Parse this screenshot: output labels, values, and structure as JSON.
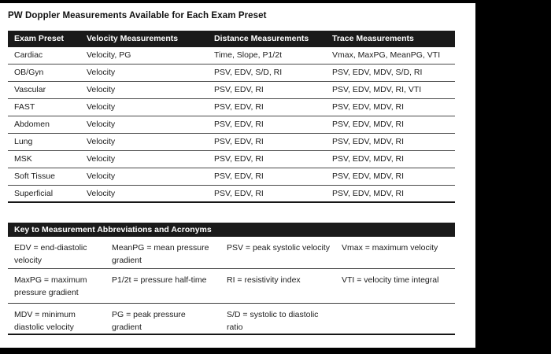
{
  "title": "PW Doppler Measurements Available for Each Exam Preset",
  "colors": {
    "header_band": "#1a1a1a",
    "page_background": "#ffffff",
    "frame_background": "#000000",
    "body_text": "#1c1c1c",
    "divider": "#4a4a4a"
  },
  "main_table": {
    "headers": [
      "Exam Preset",
      "Velocity Measurements",
      "Distance Measurements",
      "Trace Measurements"
    ],
    "rows": [
      [
        "Cardiac",
        "Velocity, PG",
        "Time, Slope, P1/2t",
        "Vmax, MaxPG, MeanPG, VTI"
      ],
      [
        "OB/Gyn",
        "Velocity",
        "PSV, EDV, S/D, RI",
        "PSV, EDV, MDV, S/D, RI"
      ],
      [
        "Vascular",
        "Velocity",
        "PSV, EDV, RI",
        "PSV, EDV, MDV, RI, VTI"
      ],
      [
        "FAST",
        "Velocity",
        "PSV, EDV, RI",
        "PSV, EDV, MDV, RI"
      ],
      [
        "Abdomen",
        "Velocity",
        "PSV, EDV, RI",
        "PSV, EDV, MDV, RI"
      ],
      [
        "Lung",
        "Velocity",
        "PSV, EDV, RI",
        "PSV, EDV, MDV, RI"
      ],
      [
        "MSK",
        "Velocity",
        "PSV, EDV, RI",
        "PSV, EDV, MDV, RI"
      ],
      [
        "Soft Tissue",
        "Velocity",
        "PSV, EDV, RI",
        "PSV, EDV, MDV, RI"
      ],
      [
        "Superficial",
        "Velocity",
        "PSV, EDV, RI",
        "PSV, EDV, MDV, RI"
      ]
    ]
  },
  "key_table": {
    "header": "Key to Measurement Abbreviations and Acronyms",
    "rows": [
      [
        [
          "EDV = end-diastolic",
          "velocity"
        ],
        [
          "MeanPG = mean pressure",
          "gradient"
        ],
        [
          "PSV = peak systolic velocity"
        ],
        [
          "Vmax = maximum velocity"
        ]
      ],
      [
        [
          "MaxPG = maximum",
          "pressure gradient"
        ],
        [
          "P1/2t = pressure half-time"
        ],
        [
          "RI = resistivity index"
        ],
        [
          "VTI = velocity time integral"
        ]
      ],
      [
        [
          "MDV = minimum",
          "diastolic velocity"
        ],
        [
          "PG = peak pressure",
          "gradient"
        ],
        [
          "S/D = systolic to diastolic",
          "ratio"
        ],
        []
      ]
    ]
  }
}
